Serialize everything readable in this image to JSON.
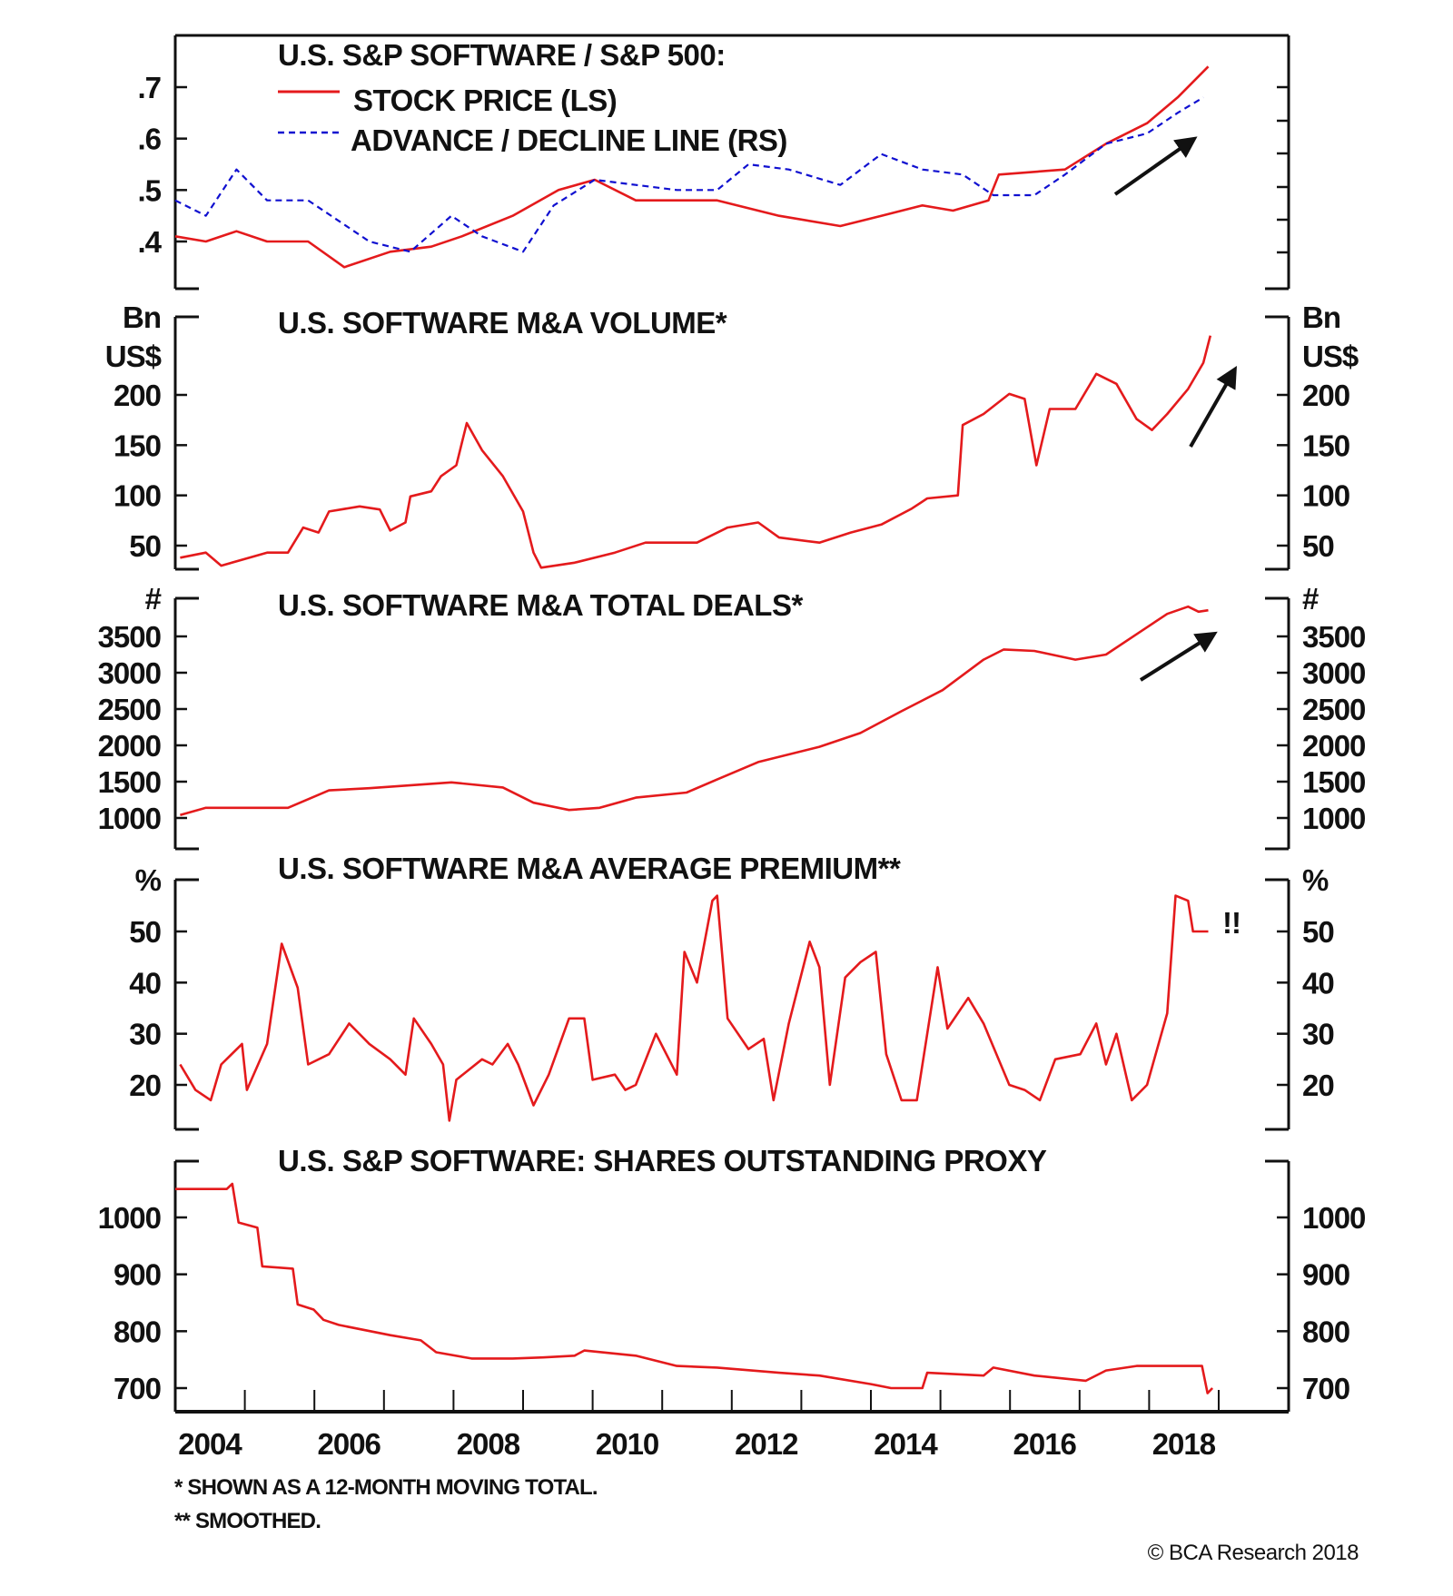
{
  "chart_data": [
    {
      "type": "line",
      "title": "U.S. S&P SOFTWARE / S&P 500:",
      "legend": [
        "STOCK PRICE (LS)",
        "ADVANCE / DECLINE LINE (RS)"
      ],
      "legend_placement": "top-left",
      "yticks_left": [
        ".7",
        ".6",
        ".5",
        ".4"
      ],
      "ytick_values": [
        0.7,
        0.6,
        0.5,
        0.4
      ],
      "xlim": [
        2004,
        2020
      ],
      "series": [
        {
          "name": "STOCK PRICE (LS)",
          "color": "#e41a1c",
          "style": "solid",
          "x": [
            2004.0,
            2004.44,
            2004.88,
            2005.32,
            2005.91,
            2006.43,
            2007.09,
            2007.68,
            2008.12,
            2008.85,
            2009.51,
            2010.03,
            2010.62,
            2011.21,
            2011.79,
            2012.68,
            2013.56,
            2014.15,
            2014.74,
            2015.18,
            2015.69,
            2015.84,
            2016.79,
            2017.38,
            2017.97,
            2018.41,
            2018.85
          ],
          "y": [
            0.41,
            0.4,
            0.42,
            0.4,
            0.4,
            0.35,
            0.38,
            0.39,
            0.41,
            0.45,
            0.5,
            0.52,
            0.48,
            0.48,
            0.48,
            0.45,
            0.43,
            0.45,
            0.47,
            0.46,
            0.48,
            0.53,
            0.54,
            0.59,
            0.63,
            0.68,
            0.74
          ]
        },
        {
          "name": "ADVANCE / DECLINE LINE (RS)",
          "color": "#1010d0",
          "style": "dashed",
          "x": [
            2004.0,
            2004.44,
            2004.88,
            2005.32,
            2005.91,
            2006.35,
            2006.79,
            2007.38,
            2007.97,
            2008.41,
            2009.0,
            2009.44,
            2010.03,
            2010.62,
            2011.21,
            2011.79,
            2012.24,
            2012.82,
            2013.56,
            2014.15,
            2014.74,
            2015.32,
            2015.76,
            2016.35,
            2016.79,
            2017.38,
            2017.97,
            2018.41,
            2018.78
          ],
          "y": [
            0.48,
            0.45,
            0.54,
            0.48,
            0.48,
            0.44,
            0.4,
            0.38,
            0.45,
            0.41,
            0.38,
            0.47,
            0.52,
            0.51,
            0.5,
            0.5,
            0.55,
            0.54,
            0.51,
            0.57,
            0.54,
            0.53,
            0.49,
            0.49,
            0.53,
            0.59,
            0.61,
            0.65,
            0.68
          ]
        }
      ]
    },
    {
      "type": "line",
      "title": "U.S. SOFTWARE M&A VOLUME*",
      "unit_label": [
        "Bn",
        "US$"
      ],
      "yticks_left": [
        "200",
        "150",
        "100",
        "50"
      ],
      "ytick_values": [
        200,
        150,
        100,
        50
      ],
      "xlim": [
        2004,
        2020
      ],
      "series": [
        {
          "name": "M&A Volume",
          "color": "#e41a1c",
          "style": "solid",
          "x": [
            2004.07,
            2004.44,
            2004.66,
            2005.32,
            2005.62,
            2005.84,
            2006.06,
            2006.21,
            2006.65,
            2006.94,
            2007.09,
            2007.31,
            2007.38,
            2007.68,
            2007.82,
            2008.04,
            2008.19,
            2008.41,
            2008.71,
            2009.0,
            2009.15,
            2009.26,
            2009.74,
            2010.32,
            2010.76,
            2011.5,
            2011.94,
            2012.38,
            2012.68,
            2013.26,
            2013.71,
            2014.15,
            2014.59,
            2014.81,
            2015.25,
            2015.32,
            2015.62,
            2015.99,
            2016.21,
            2016.38,
            2016.57,
            2016.94,
            2017.24,
            2017.53,
            2017.82,
            2018.04,
            2018.26,
            2018.56,
            2018.78,
            2018.88
          ],
          "y": [
            38,
            43,
            30,
            43,
            43,
            68,
            63,
            84,
            89,
            86,
            65,
            73,
            99,
            104,
            119,
            130,
            172,
            145,
            119,
            84,
            43,
            28,
            33,
            43,
            53,
            53,
            68,
            73,
            58,
            53,
            63,
            71,
            87,
            97,
            100,
            170,
            181,
            201,
            196,
            130,
            186,
            186,
            221,
            211,
            176,
            165,
            181,
            206,
            232,
            259
          ]
        }
      ]
    },
    {
      "type": "line",
      "title": "U.S. SOFTWARE M&A TOTAL DEALS*",
      "unit_label": [
        "#"
      ],
      "yticks_left": [
        "3500",
        "3000",
        "2500",
        "2000",
        "1500",
        "1000"
      ],
      "ytick_values": [
        3500,
        3000,
        2500,
        2000,
        1500,
        1000
      ],
      "xlim": [
        2004,
        2020
      ],
      "series": [
        {
          "name": "Total Deals",
          "color": "#e41a1c",
          "style": "solid",
          "x": [
            2004.07,
            2004.44,
            2005.62,
            2006.21,
            2006.79,
            2007.97,
            2008.71,
            2009.15,
            2009.66,
            2010.1,
            2010.62,
            2011.35,
            2011.79,
            2012.38,
            2013.26,
            2013.85,
            2014.44,
            2015.03,
            2015.62,
            2015.91,
            2016.35,
            2016.94,
            2017.38,
            2017.82,
            2018.26,
            2018.56,
            2018.71,
            2018.85
          ],
          "y": [
            1040,
            1140,
            1140,
            1380,
            1410,
            1490,
            1420,
            1210,
            1110,
            1140,
            1280,
            1350,
            1530,
            1770,
            1980,
            2170,
            2470,
            2760,
            3180,
            3320,
            3300,
            3180,
            3250,
            3530,
            3810,
            3910,
            3840,
            3860
          ]
        }
      ]
    },
    {
      "type": "line",
      "title": "U.S. SOFTWARE M&A AVERAGE PREMIUM**",
      "unit_label": [
        "%"
      ],
      "annotation": "!!",
      "yticks_left": [
        "50",
        "40",
        "30",
        "20"
      ],
      "ytick_values": [
        50,
        40,
        30,
        20
      ],
      "xlim": [
        2004,
        2020
      ],
      "series": [
        {
          "name": "Average Premium",
          "color": "#e41a1c",
          "style": "solid",
          "x": [
            2004.07,
            2004.29,
            2004.51,
            2004.66,
            2004.96,
            2005.03,
            2005.32,
            2005.53,
            2005.76,
            2005.91,
            2006.21,
            2006.5,
            2006.79,
            2007.09,
            2007.31,
            2007.43,
            2007.68,
            2007.85,
            2007.94,
            2008.04,
            2008.41,
            2008.56,
            2008.78,
            2008.93,
            2009.15,
            2009.37,
            2009.66,
            2009.88,
            2010.0,
            2010.32,
            2010.47,
            2010.62,
            2010.91,
            2011.21,
            2011.32,
            2011.5,
            2011.72,
            2011.79,
            2011.94,
            2012.24,
            2012.46,
            2012.6,
            2012.82,
            2013.12,
            2013.26,
            2013.41,
            2013.63,
            2013.85,
            2014.07,
            2014.22,
            2014.44,
            2014.66,
            2014.96,
            2015.1,
            2015.4,
            2015.62,
            2015.99,
            2016.21,
            2016.43,
            2016.65,
            2017.01,
            2017.24,
            2017.38,
            2017.53,
            2017.75,
            2017.97,
            2018.26,
            2018.38,
            2018.56,
            2018.63,
            2018.85
          ],
          "y": [
            24,
            19,
            17,
            24,
            28,
            19,
            28,
            47.6,
            39,
            24,
            26,
            32,
            28,
            25,
            22,
            33,
            28,
            24,
            13,
            21,
            25,
            24,
            28,
            24,
            16,
            22,
            33,
            33,
            21,
            22,
            19,
            20,
            30,
            22,
            46,
            40,
            56,
            57,
            33,
            27,
            29,
            17,
            32,
            48,
            43,
            20,
            41,
            44,
            46,
            26,
            17,
            17,
            43,
            31,
            37,
            32,
            20,
            19,
            17,
            25,
            26,
            32,
            24,
            30,
            17,
            20,
            34,
            57,
            56,
            50,
            50
          ]
        }
      ]
    },
    {
      "type": "line",
      "title": "U.S. S&P SOFTWARE: SHARES OUTSTANDING PROXY",
      "yticks_left": [
        "1000",
        "900",
        "800",
        "700"
      ],
      "ytick_values": [
        1000,
        900,
        800,
        700
      ],
      "xlabels": [
        "2004",
        "2006",
        "2008",
        "2010",
        "2012",
        "2014",
        "2016",
        "2018"
      ],
      "xlim": [
        2004,
        2020
      ],
      "series": [
        {
          "name": "Shares Outstanding Proxy",
          "color": "#e41a1c",
          "style": "step",
          "x": [
            2004.0,
            2004.74,
            2004.82,
            2004.91,
            2005.18,
            2005.25,
            2005.69,
            2005.76,
            2005.99,
            2006.13,
            2006.35,
            2007.09,
            2007.53,
            2007.75,
            2008.26,
            2008.85,
            2009.29,
            2009.74,
            2009.88,
            2010.62,
            2011.21,
            2011.79,
            2012.68,
            2013.26,
            2014.0,
            2014.29,
            2014.74,
            2014.81,
            2015.62,
            2015.76,
            2016.35,
            2017.09,
            2017.38,
            2017.82,
            2018.76,
            2018.84,
            2018.91
          ],
          "y": [
            1050,
            1050,
            1059,
            991,
            982,
            914,
            910,
            847,
            838,
            820,
            811,
            793,
            784,
            763,
            752,
            752,
            754,
            757,
            766,
            757,
            739,
            736,
            727,
            722,
            707,
            700,
            700,
            727,
            722,
            736,
            722,
            713,
            731,
            739,
            739,
            691,
            700
          ]
        }
      ]
    }
  ],
  "footnotes": [
    "*  SHOWN AS A 12-MONTH MOVING TOTAL.",
    "** SMOOTHED."
  ],
  "copyright": "© BCA Research 2018"
}
